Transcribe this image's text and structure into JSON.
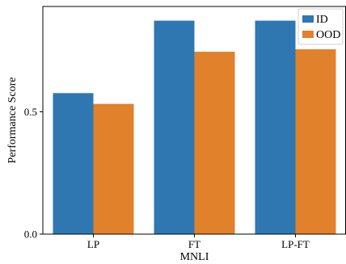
{
  "chart_data": {
    "type": "bar",
    "categories": [
      "LP",
      "FT",
      "LP-FT"
    ],
    "series": [
      {
        "name": "ID",
        "values": [
          0.576,
          0.872,
          0.872
        ],
        "color": "#2f77b1"
      },
      {
        "name": "OOD",
        "values": [
          0.532,
          0.745,
          0.755
        ],
        "color": "#e1812c"
      }
    ],
    "title": "",
    "xlabel": "MNLI",
    "ylabel": "Performance Score",
    "ylim": [
      0,
      0.93
    ],
    "yticks": [
      0.0,
      0.5
    ],
    "ytick_labels": [
      "0.0",
      "0.5"
    ],
    "grid": false,
    "legend_position": "top-right"
  }
}
